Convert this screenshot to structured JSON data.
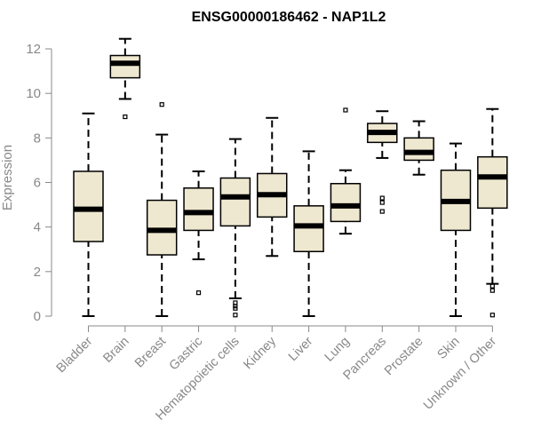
{
  "chart_data": {
    "type": "boxplot",
    "title": "ENSG00000186462 - NAP1L2",
    "xlabel": "",
    "ylabel": "Expression",
    "ylim": [
      0,
      12.5
    ],
    "yticks": [
      "0",
      "2",
      "4",
      "6",
      "8",
      "10",
      "12"
    ],
    "grid": false,
    "colors": {
      "box_fill": "#efe8d0",
      "outline": "#000000",
      "axis": "#888888"
    },
    "categories": [
      "Bladder",
      "Brain",
      "Breast",
      "Gastric",
      "Hematopoietic cells",
      "Kidney",
      "Liver",
      "Lung",
      "Pancreas",
      "Prostate",
      "Skin",
      "Unknown / Other"
    ],
    "boxes": [
      {
        "whisker_low": 0.0,
        "q1": 3.35,
        "median": 4.8,
        "q3": 6.5,
        "whisker_high": 9.1,
        "outliers": []
      },
      {
        "whisker_low": 9.75,
        "q1": 10.7,
        "median": 11.35,
        "q3": 11.7,
        "whisker_high": 12.45,
        "outliers": [
          8.95
        ]
      },
      {
        "whisker_low": 0.0,
        "q1": 2.75,
        "median": 3.85,
        "q3": 5.2,
        "whisker_high": 8.15,
        "outliers": [
          9.5
        ]
      },
      {
        "whisker_low": 2.55,
        "q1": 3.85,
        "median": 4.65,
        "q3": 5.75,
        "whisker_high": 6.5,
        "outliers": [
          1.05
        ]
      },
      {
        "whisker_low": 0.8,
        "q1": 4.05,
        "median": 5.35,
        "q3": 6.2,
        "whisker_high": 7.95,
        "outliers": [
          0.6,
          0.45,
          0.35,
          0.05
        ]
      },
      {
        "whisker_low": 2.7,
        "q1": 4.45,
        "median": 5.45,
        "q3": 6.4,
        "whisker_high": 8.9,
        "outliers": []
      },
      {
        "whisker_low": 0.0,
        "q1": 2.9,
        "median": 4.05,
        "q3": 4.95,
        "whisker_high": 7.4,
        "outliers": []
      },
      {
        "whisker_low": 3.7,
        "q1": 4.25,
        "median": 4.95,
        "q3": 5.95,
        "whisker_high": 6.55,
        "outliers": [
          9.25
        ]
      },
      {
        "whisker_low": 7.1,
        "q1": 7.8,
        "median": 8.25,
        "q3": 8.65,
        "whisker_high": 9.2,
        "outliers": [
          5.3,
          5.1,
          4.7
        ]
      },
      {
        "whisker_low": 6.35,
        "q1": 7.0,
        "median": 7.35,
        "q3": 8.0,
        "whisker_high": 8.75,
        "outliers": []
      },
      {
        "whisker_low": 0.0,
        "q1": 3.85,
        "median": 5.15,
        "q3": 6.55,
        "whisker_high": 7.75,
        "outliers": []
      },
      {
        "whisker_low": 1.45,
        "q1": 4.85,
        "median": 6.25,
        "q3": 7.15,
        "whisker_high": 9.3,
        "outliers": [
          1.35,
          1.15,
          0.05
        ]
      }
    ]
  }
}
